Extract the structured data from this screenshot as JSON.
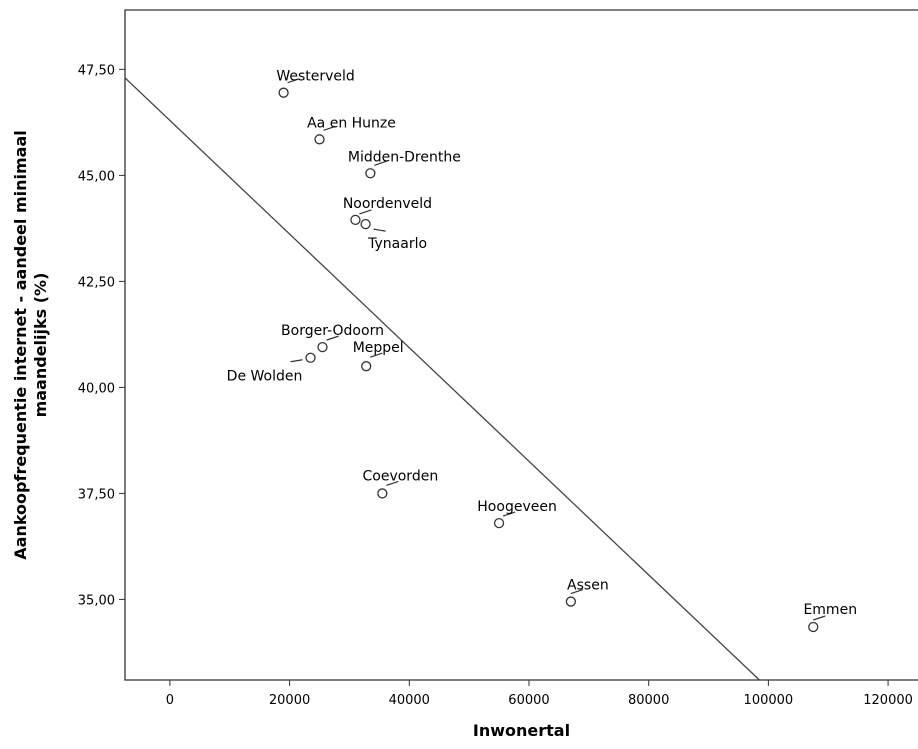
{
  "chart_data": {
    "type": "scatter",
    "title": "",
    "xlabel": "Inwonertal",
    "ylabel_line1": "Aankoopfrequentie internet - aandeel minimaal",
    "ylabel_line2": "maandelijks (%)",
    "xlim": [
      -7500,
      125000
    ],
    "ylim": [
      33.1,
      48.9
    ],
    "x_ticks": [
      0,
      20000,
      40000,
      60000,
      80000,
      100000,
      120000
    ],
    "x_tick_labels": [
      "0",
      "20000",
      "40000",
      "60000",
      "80000",
      "100000",
      "120000"
    ],
    "y_ticks": [
      35.0,
      37.5,
      40.0,
      42.5,
      45.0,
      47.5
    ],
    "y_tick_labels": [
      "35,00",
      "37,50",
      "40,00",
      "42,50",
      "45,00",
      "47,50"
    ],
    "grid": false,
    "points": [
      {
        "label": "Westerveld",
        "x": 19000,
        "y": 46.95
      },
      {
        "label": "Aa en Hunze",
        "x": 25000,
        "y": 45.85
      },
      {
        "label": "Midden-Drenthe",
        "x": 33500,
        "y": 45.05
      },
      {
        "label": "Noordenveld",
        "x": 31000,
        "y": 43.95
      },
      {
        "label": "Tynaarlo",
        "x": 32700,
        "y": 43.85
      },
      {
        "label": "Borger-Odoorn",
        "x": 25500,
        "y": 40.95
      },
      {
        "label": "De Wolden",
        "x": 23500,
        "y": 40.7
      },
      {
        "label": "Meppel",
        "x": 32800,
        "y": 40.5
      },
      {
        "label": "Coevorden",
        "x": 35500,
        "y": 37.5
      },
      {
        "label": "Hoogeveen",
        "x": 55000,
        "y": 36.8
      },
      {
        "label": "Assen",
        "x": 67000,
        "y": 34.95
      },
      {
        "label": "Emmen",
        "x": 107500,
        "y": 34.35
      }
    ],
    "fit_line": {
      "x1": -7500,
      "y1": 47.3,
      "x2": 98500,
      "y2": 33.1
    }
  }
}
